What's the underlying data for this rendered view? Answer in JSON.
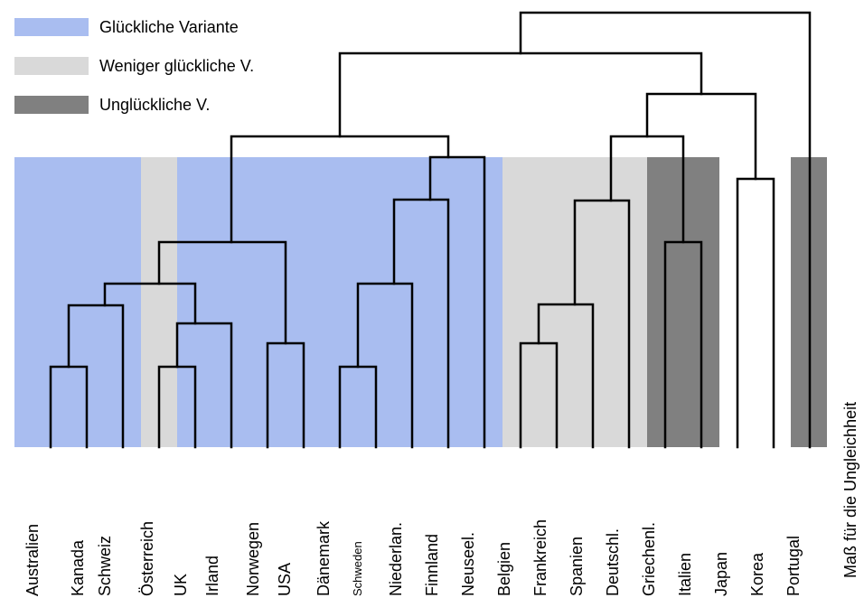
{
  "legend": [
    {
      "label": "Glückliche Variante",
      "color": "#a9bdf0"
    },
    {
      "label": "Weniger glückliche V.",
      "color": "#d9d9d9"
    },
    {
      "label": "Unglückliche V.",
      "color": "#808080"
    }
  ],
  "axis_label": "Maß für die Ungleichheit",
  "countries": [
    "Australien",
    "Kanada",
    "Schweiz",
    "Österreich",
    "UK",
    "Irland",
    "Norwegen",
    "USA",
    "Dänemark",
    "Schweden",
    "Niederlan.",
    "Finnland",
    "Neuseel.",
    "Belgien",
    "Frankreich",
    "Spanien",
    "Deutschl.",
    "Griechenl.",
    "Italien",
    "Japan",
    "Korea",
    "Portugal"
  ],
  "colors": {
    "happy": "#a9bdf0",
    "less_happy": "#d9d9d9",
    "unhappy": "#808080"
  }
}
